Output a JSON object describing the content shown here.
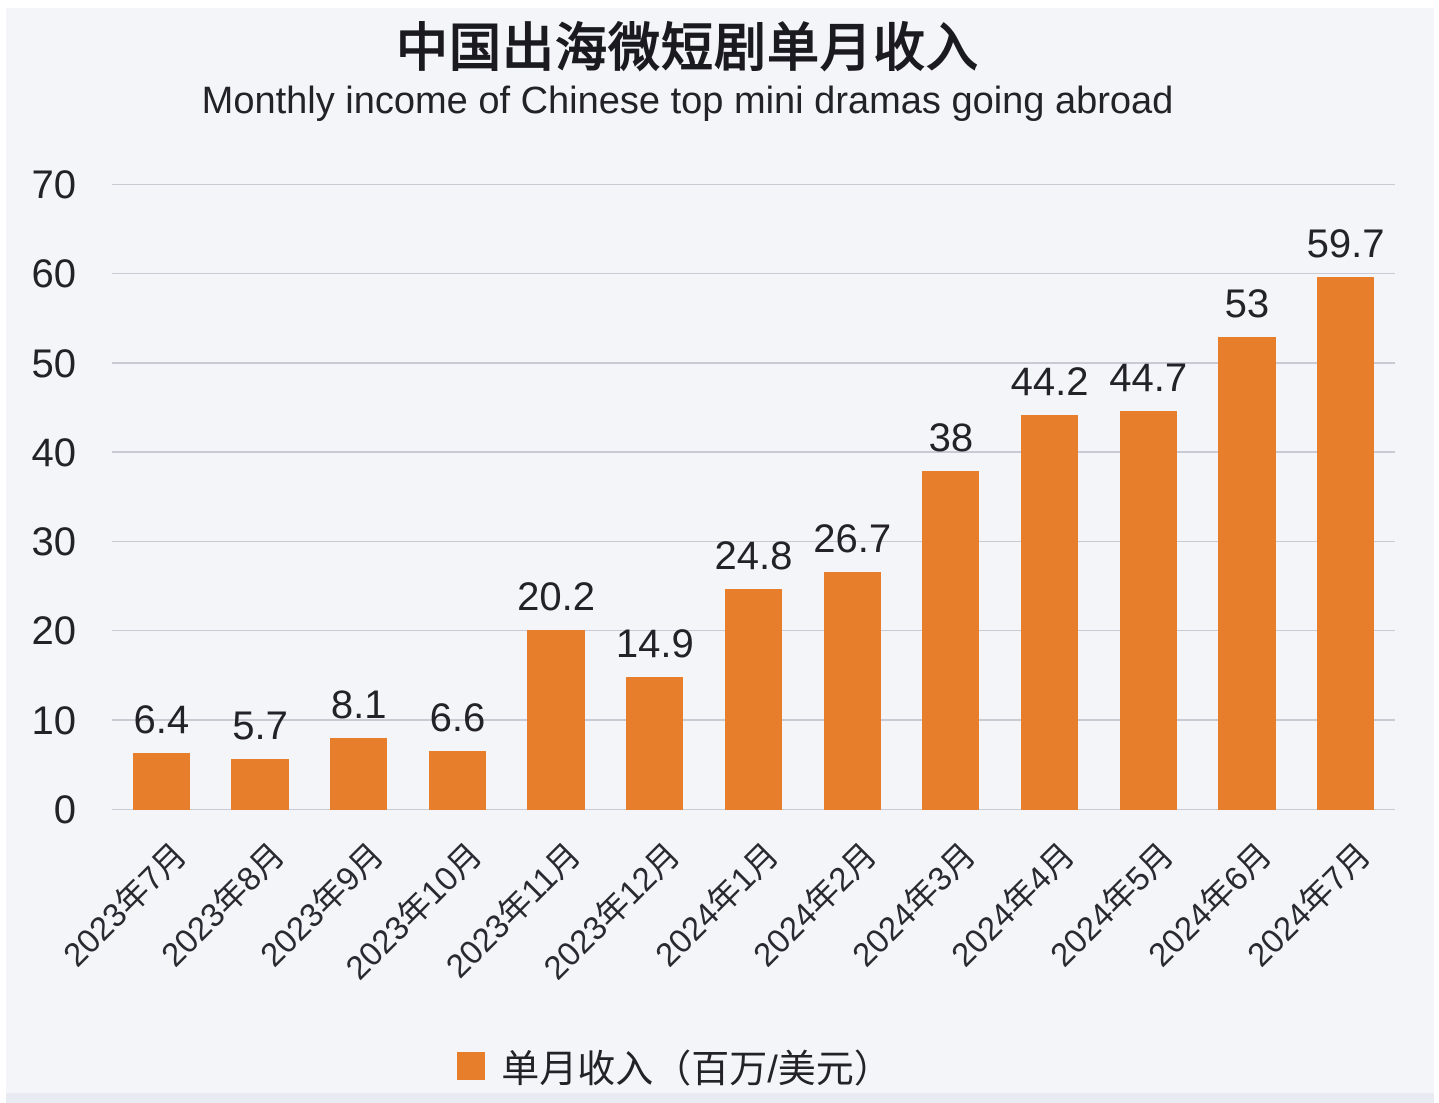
{
  "page": {
    "background": "#f4f5f9",
    "frame_color": "#ffffff",
    "bottom_band_color": "#e9ebf2"
  },
  "chart_data": {
    "type": "bar",
    "title": "中国出海微短剧单月收入",
    "subtitle": "Monthly income of Chinese top mini dramas going abroad",
    "categories": [
      "2023年7月",
      "2023年8月",
      "2023年9月",
      "2023年10月",
      "2023年11月",
      "2023年12月",
      "2024年1月",
      "2024年2月",
      "2024年3月",
      "2024年4月",
      "2024年5月",
      "2024年6月",
      "2024年7月"
    ],
    "values": [
      6.4,
      5.7,
      8.1,
      6.6,
      20.2,
      14.9,
      24.8,
      26.7,
      38,
      44.2,
      44.7,
      53,
      59.7
    ],
    "xlabel": "",
    "ylabel": "",
    "ylim": [
      0,
      70
    ],
    "yticks": [
      0,
      10,
      20,
      30,
      40,
      50,
      60,
      70
    ],
    "grid": true,
    "value_labels_shown": true,
    "bar_color": "#e77e2c",
    "gridline_color": "#c9cad3",
    "text_color": "#232229",
    "legend": {
      "label": "单月收入（百万/美元）",
      "position": "bottom",
      "marker": "square",
      "marker_color": "#e77e2c"
    }
  }
}
